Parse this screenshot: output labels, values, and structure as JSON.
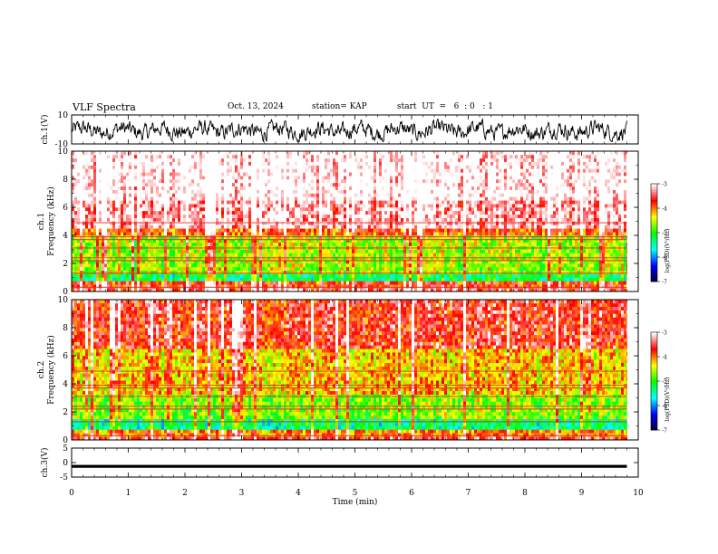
{
  "header": {
    "title": "VLF Spectra",
    "date": "Oct. 13, 2024",
    "station": "station= KAP",
    "start": "start  UT  =   6  : 0   : 1"
  },
  "chart_data": [
    {
      "type": "line",
      "panel": "ch1-waveform",
      "ylabel": "ch.1(V)",
      "ylim": [
        -10,
        10
      ],
      "yticks": [
        10,
        -10
      ],
      "xlim": [
        0,
        10
      ],
      "data_end_min": 9.8,
      "description_source": "noisy voltage trace, roughly -8 to 6 V"
    },
    {
      "type": "heatmap",
      "panel": "ch1-spectrogram",
      "ylabel": "ch.1\nFrequency  (kHz)",
      "ylim": [
        0,
        10
      ],
      "yticks": [
        0,
        2,
        4,
        6,
        8,
        10
      ],
      "xlim": [
        0,
        10
      ],
      "data_end_min": 9.8,
      "band_edges_khz": [
        0,
        0.3,
        0.8,
        1.2,
        3.9,
        4.6,
        6.5,
        10
      ],
      "band_levels": [
        -3.4,
        -3.7,
        -5.2,
        -4.6,
        -3.8,
        -3.2,
        -2.9
      ],
      "colorbar": {
        "label": "log(PSD)(V²/Hz)",
        "range": [
          -7,
          -3
        ],
        "ticks": [
          -3,
          -4,
          -5,
          -6,
          -7
        ]
      }
    },
    {
      "type": "heatmap",
      "panel": "ch2-spectrogram",
      "ylabel": "ch.2\nFrequency  (kHz)",
      "ylim": [
        0,
        10
      ],
      "yticks": [
        0,
        2,
        4,
        6,
        8,
        10
      ],
      "xlim": [
        0,
        10
      ],
      "data_end_min": 9.8,
      "band_edges_khz": [
        0,
        0.3,
        0.7,
        1.5,
        3.3,
        6.5,
        10
      ],
      "band_levels": [
        -3.5,
        -4.0,
        -5.3,
        -4.7,
        -4.2,
        -3.6
      ],
      "colorbar": {
        "label": "log(PSD)(V²/Hz)",
        "range": [
          -7,
          -3
        ],
        "ticks": [
          -3,
          -4,
          -5,
          -6,
          -7
        ]
      }
    },
    {
      "type": "line",
      "panel": "ch3-waveform",
      "ylabel": "ch.3(V)",
      "ylim": [
        -5,
        5
      ],
      "yticks": [
        5,
        0,
        -5
      ],
      "xlim": [
        0,
        10
      ],
      "data_end_min": 9.8,
      "description_source": "thick flat band near -1.3 V"
    }
  ],
  "xaxis": {
    "label": "Time  (min)",
    "ticks": [
      "0",
      "1",
      "2",
      "3",
      "4",
      "5",
      "6",
      "7",
      "8",
      "9",
      "10"
    ]
  },
  "colors": {
    "scale": [
      "#000033",
      "#0000ff",
      "#00ffff",
      "#00ff00",
      "#ffff00",
      "#ff0000",
      "#ffffff"
    ]
  }
}
